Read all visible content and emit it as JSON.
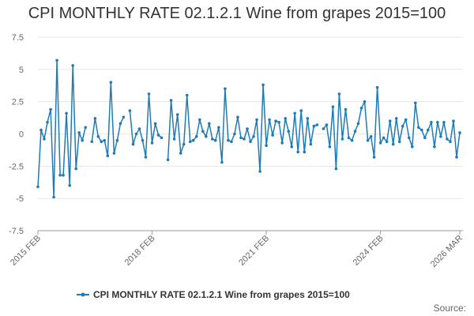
{
  "chart_data": {
    "type": "line",
    "title": "CPI MONTHLY RATE 02.1.2.1 Wine from grapes 2015=100",
    "xlabel": "",
    "ylabel": "",
    "ylim": [
      -7.5,
      7.5
    ],
    "y_ticks": [
      "7.5",
      "5",
      "2.5",
      "0",
      "-2.5",
      "-5",
      "-7.5"
    ],
    "x_tick_labels": [
      "2015 FEB",
      "2018 FEB",
      "2021 FEB",
      "2024 FEB",
      "2026 MAR"
    ],
    "grid": true,
    "legend_position": "bottom-center",
    "color": "#1f7bb6",
    "series": [
      {
        "name": "CPI MONTHLY RATE 02.1.2.1 Wine from grapes 2015=100",
        "x_start": "2015-02",
        "x_end": "2026-03",
        "values": [
          -4.1,
          0.3,
          -0.4,
          0.9,
          1.9,
          -4.9,
          5.7,
          -3.2,
          -3.2,
          1.6,
          -4.0,
          5.3,
          -2.7,
          0.1,
          -0.5,
          0.5,
          null,
          -0.6,
          1.2,
          -0.2,
          -0.6,
          -0.5,
          -1.7,
          4.0,
          -1.5,
          -0.5,
          0.8,
          1.3,
          null,
          1.8,
          -0.8,
          0.0,
          0.4,
          -0.5,
          -1.8,
          3.1,
          -0.7,
          0.8,
          -0.1,
          -0.3,
          null,
          -2.0,
          2.6,
          -0.4,
          1.5,
          -1.5,
          -0.8,
          3.0,
          -0.6,
          -0.5,
          -0.2,
          1.1,
          0.2,
          -0.2,
          0.8,
          -0.4,
          -0.5,
          0.5,
          -2.2,
          3.5,
          -0.5,
          -0.6,
          0.0,
          1.3,
          -0.3,
          -0.4,
          0.4,
          -0.6,
          -0.2,
          1.1,
          -2.9,
          3.8,
          -0.9,
          1.1,
          -0.1,
          1.0,
          0.9,
          -0.7,
          1.2,
          0.2,
          -1.0,
          1.6,
          -1.4,
          1.8,
          -1.4,
          1.2,
          -0.8,
          0.6,
          0.7,
          null,
          0.4,
          0.7,
          -1.0,
          2.1,
          -2.7,
          3.1,
          -0.4,
          1.9,
          -0.3,
          -0.5,
          0.2,
          0.8,
          2.0,
          2.5,
          -0.5,
          -0.2,
          -1.8,
          3.6,
          -0.7,
          -0.3,
          -0.6,
          1.0,
          -0.8,
          1.2,
          -0.6,
          0.6,
          1.1,
          -0.3,
          -1.0,
          2.4,
          0.5,
          0.3,
          -0.3,
          0.3,
          0.9,
          -1.0,
          0.9,
          -0.2,
          0.9,
          -0.4,
          -0.6,
          1.0,
          -1.8,
          0.1
        ]
      }
    ]
  },
  "footer": {
    "source_label": "Source:"
  }
}
